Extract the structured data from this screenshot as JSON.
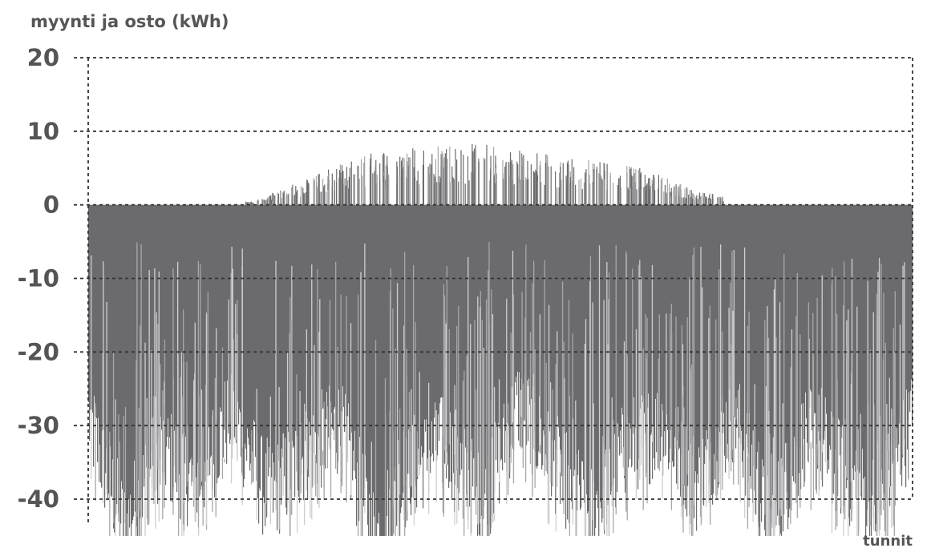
{
  "chart_data": {
    "type": "bar",
    "ylabel": "myynti ja osto (kWh)",
    "xlabel": "tunnit",
    "ylim": [
      -45,
      20
    ],
    "xlim": [
      0,
      8760
    ],
    "y_ticks": [
      20,
      10,
      0,
      -10,
      -20,
      -30,
      -40
    ],
    "y_tick_labels": [
      "20",
      "10",
      "0",
      "-10",
      "-20",
      "-30",
      "-40"
    ],
    "grid": true,
    "series": [
      {
        "values_description_note": "",
        "sampled": {
          "purchase_envelope": [
            -29,
            -44,
            -33,
            -38,
            -28,
            -40,
            -34,
            -30,
            -45,
            -36,
            -32,
            -41,
            -27,
            -35,
            -42,
            -33,
            -30,
            -38,
            -28,
            -44,
            -31,
            -36,
            -41,
            -29
          ],
          "sale_peak_by_month": [
            0,
            0,
            0,
            0.5,
            3.5,
            6.5,
            7.5,
            8,
            7,
            6,
            5,
            2,
            0.5,
            0,
            0,
            0
          ]
        }
      }
    ],
    "colors": {
      "fill": "#6b6b6d",
      "spike": "#a7a7a9",
      "light": "#cfcfd1",
      "text": "#555555",
      "grid": "#333333"
    }
  }
}
